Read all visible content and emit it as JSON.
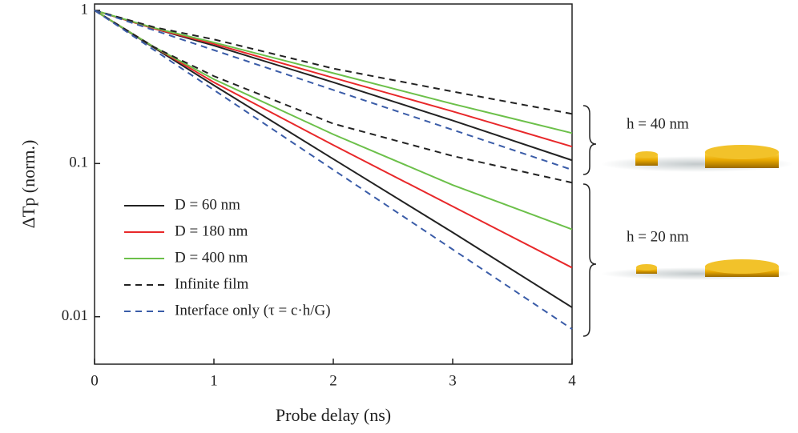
{
  "chart_data": {
    "type": "line",
    "x_label": "Probe delay (ns)",
    "y_label": "ΔTp (norm.)",
    "y_scale": "log",
    "x": [
      0,
      0.5,
      1,
      2,
      3,
      4
    ],
    "xlim": [
      0,
      4
    ],
    "xticks": [
      0,
      1,
      2,
      3,
      4
    ],
    "ylim": [
      0.0049,
      1.1
    ],
    "yticks": [
      1,
      0.1,
      0.01
    ],
    "annotations": [
      "h = 40 nm",
      "h = 20 nm"
    ],
    "series": [
      {
        "name": "D = 60 nm",
        "color": "#222222",
        "dash": false,
        "values": [
          1,
          0.759,
          0.589,
          0.339,
          0.191,
          0.105
        ]
      },
      {
        "name": "D = 180 nm",
        "color": "#e8282a",
        "dash": false,
        "values": [
          1,
          0.759,
          0.603,
          0.363,
          0.219,
          0.129
        ]
      },
      {
        "name": "D = 400 nm",
        "color": "#6cc04a",
        "dash": false,
        "values": [
          1,
          0.767,
          0.617,
          0.389,
          0.245,
          0.158
        ]
      },
      {
        "name": "Infinite film",
        "color": "#222222",
        "dash": true,
        "values": [
          1,
          0.776,
          0.646,
          0.417,
          0.295,
          0.211
        ]
      },
      {
        "name": "Interface only (τ = c·h/G)",
        "color": "#3a5ca8",
        "dash": true,
        "values": [
          1,
          0.741,
          0.55,
          0.302,
          0.166,
          0.091
        ]
      },
      {
        "name": "D = 60 nm",
        "color": "#222222",
        "dash": false,
        "values": [
          1,
          0.569,
          0.324,
          0.107,
          0.0355,
          0.0115
        ]
      },
      {
        "name": "D = 180 nm",
        "color": "#e8282a",
        "dash": false,
        "values": [
          1,
          0.575,
          0.339,
          0.132,
          0.0525,
          0.0209
        ]
      },
      {
        "name": "D = 400 nm",
        "color": "#6cc04a",
        "dash": false,
        "values": [
          1,
          0.575,
          0.355,
          0.155,
          0.0724,
          0.0372
        ]
      },
      {
        "name": "Infinite film",
        "color": "#222222",
        "dash": true,
        "values": [
          1,
          0.575,
          0.372,
          0.182,
          0.112,
          0.075
        ]
      },
      {
        "name": "Interface only (τ = c·h/G)",
        "color": "#3a5ca8",
        "dash": true,
        "values": [
          1,
          0.55,
          0.302,
          0.091,
          0.0275,
          0.0083
        ]
      }
    ]
  }
}
